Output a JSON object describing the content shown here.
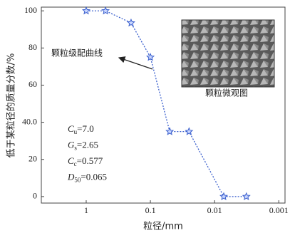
{
  "chart_data": {
    "type": "line",
    "x_label": "粒径/mm",
    "y_label": "低于某粒径的质量分数/%",
    "x": [
      1,
      0.5,
      0.2,
      0.1,
      0.05,
      0.025,
      0.0072,
      0.0032
    ],
    "series": [
      {
        "name": "颗粒级配曲线",
        "color": "#3a5fcd",
        "values": [
          100,
          100,
          93.5,
          75,
          35,
          35,
          0,
          0
        ]
      }
    ],
    "x_log": true,
    "xlim": [
      5,
      0.0008
    ],
    "xticks": [
      1,
      0.1,
      0.01,
      0.001
    ],
    "ylim": [
      -3.5,
      102
    ],
    "yticks": [
      0,
      20,
      {
        "value": 40,
        "label": "40.0"
      },
      60,
      80,
      100
    ],
    "inset_label": "颗粒微观图",
    "parameters": [
      {
        "symbol": "C",
        "subscript": "u",
        "text": "=7.0"
      },
      {
        "symbol": "G",
        "subscript": "s",
        "text": "=2.65"
      },
      {
        "symbol": "C",
        "subscript": "c",
        "text": "=0.577"
      },
      {
        "symbol": "D",
        "subscript": "50",
        "text": "=0.065"
      }
    ]
  }
}
